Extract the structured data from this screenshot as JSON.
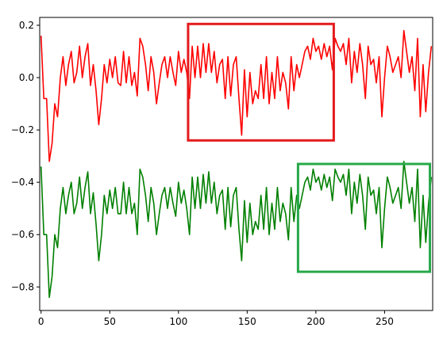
{
  "chart_data": {
    "type": "line",
    "title": "",
    "xlabel": "",
    "ylabel": "",
    "xlim": [
      -1,
      285
    ],
    "ylim": [
      -0.89,
      0.23
    ],
    "xticks": [
      0,
      50,
      100,
      150,
      200,
      250
    ],
    "xtick_labels": [
      "0",
      "50",
      "100",
      "150",
      "200",
      "250"
    ],
    "yticks": [
      0.2,
      0.0,
      -0.2,
      -0.4,
      -0.6,
      -0.8
    ],
    "ytick_labels": [
      "0.2",
      "0.0",
      "−0.2",
      "−0.4",
      "−0.6",
      "−0.8"
    ],
    "grid": false,
    "legend": null,
    "series": [
      {
        "color": "#ff0000",
        "x": [
          0,
          2,
          4,
          6,
          8,
          10,
          12,
          14,
          16,
          18,
          20,
          22,
          24,
          26,
          28,
          30,
          32,
          34,
          36,
          38,
          40,
          42,
          44,
          46,
          48,
          50,
          52,
          54,
          56,
          58,
          60,
          62,
          64,
          66,
          68,
          70,
          72,
          74,
          76,
          78,
          80,
          82,
          84,
          86,
          88,
          90,
          92,
          94,
          96,
          98,
          100,
          102,
          104,
          106,
          108,
          110,
          112,
          114,
          116,
          118,
          120,
          122,
          124,
          126,
          128,
          130,
          132,
          134,
          136,
          138,
          140,
          142,
          144,
          146,
          148,
          150,
          152,
          154,
          156,
          158,
          160,
          162,
          164,
          166,
          168,
          170,
          172,
          174,
          176,
          178,
          180,
          182,
          184,
          186,
          188,
          190,
          192,
          194,
          196,
          198,
          200,
          202,
          204,
          206,
          208,
          210,
          212,
          214,
          216,
          218,
          220,
          222,
          224,
          226,
          228,
          230,
          232,
          234,
          236,
          238,
          240,
          242,
          244,
          246,
          248,
          250,
          252,
          254,
          256,
          258,
          260,
          262,
          264,
          266,
          268,
          270,
          272,
          274,
          276,
          278,
          280,
          282,
          284
        ],
        "values": [
          0.16,
          -0.08,
          -0.08,
          -0.32,
          -0.25,
          -0.1,
          -0.15,
          0.0,
          0.08,
          -0.03,
          0.05,
          0.1,
          -0.02,
          0.02,
          0.12,
          0.0,
          0.08,
          0.13,
          -0.03,
          0.05,
          -0.05,
          -0.18,
          -0.08,
          0.05,
          -0.02,
          0.07,
          0.0,
          0.08,
          -0.02,
          -0.03,
          0.1,
          -0.02,
          0.08,
          -0.03,
          0.02,
          -0.07,
          0.15,
          0.12,
          0.05,
          -0.05,
          0.08,
          0.02,
          -0.1,
          -0.02,
          0.05,
          0.08,
          0.0,
          0.08,
          0.02,
          -0.03,
          0.1,
          0.02,
          0.07,
          0.02,
          -0.08,
          0.12,
          0.0,
          0.12,
          0.0,
          0.13,
          0.02,
          0.13,
          0.02,
          0.1,
          -0.02,
          0.05,
          0.07,
          -0.08,
          0.08,
          -0.07,
          0.05,
          0.08,
          -0.08,
          -0.22,
          0.03,
          -0.15,
          0.02,
          -0.1,
          -0.05,
          -0.08,
          0.05,
          -0.08,
          0.08,
          -0.1,
          0.02,
          -0.08,
          0.08,
          -0.05,
          0.02,
          -0.02,
          -0.12,
          0.08,
          -0.05,
          0.05,
          0.0,
          0.05,
          0.1,
          0.12,
          0.07,
          0.15,
          0.1,
          0.12,
          0.07,
          0.13,
          0.08,
          0.12,
          0.03,
          0.15,
          0.12,
          0.1,
          0.13,
          0.05,
          0.15,
          -0.02,
          0.1,
          0.02,
          0.13,
          0.05,
          -0.08,
          0.12,
          0.05,
          0.07,
          -0.02,
          0.08,
          -0.15,
          0.0,
          0.12,
          0.08,
          0.02,
          0.05,
          0.08,
          0.0,
          0.18,
          0.1,
          0.02,
          0.08,
          -0.05,
          0.15,
          -0.15,
          0.05,
          -0.13,
          0.02,
          0.12
        ]
      },
      {
        "color": "#008000",
        "x": [
          0,
          2,
          4,
          6,
          8,
          10,
          12,
          14,
          16,
          18,
          20,
          22,
          24,
          26,
          28,
          30,
          32,
          34,
          36,
          38,
          40,
          42,
          44,
          46,
          48,
          50,
          52,
          54,
          56,
          58,
          60,
          62,
          64,
          66,
          68,
          70,
          72,
          74,
          76,
          78,
          80,
          82,
          84,
          86,
          88,
          90,
          92,
          94,
          96,
          98,
          100,
          102,
          104,
          106,
          108,
          110,
          112,
          114,
          116,
          118,
          120,
          122,
          124,
          126,
          128,
          130,
          132,
          134,
          136,
          138,
          140,
          142,
          144,
          146,
          148,
          150,
          152,
          154,
          156,
          158,
          160,
          162,
          164,
          166,
          168,
          170,
          172,
          174,
          176,
          178,
          180,
          182,
          184,
          186,
          188,
          190,
          192,
          194,
          196,
          198,
          200,
          202,
          204,
          206,
          208,
          210,
          212,
          214,
          216,
          218,
          220,
          222,
          224,
          226,
          228,
          230,
          232,
          234,
          236,
          238,
          240,
          242,
          244,
          246,
          248,
          250,
          252,
          254,
          256,
          258,
          260,
          262,
          264,
          266,
          268,
          270,
          272,
          274,
          276,
          278,
          280,
          282,
          284
        ],
        "values": [
          -0.34,
          -0.6,
          -0.6,
          -0.84,
          -0.76,
          -0.6,
          -0.65,
          -0.5,
          -0.42,
          -0.52,
          -0.45,
          -0.4,
          -0.52,
          -0.48,
          -0.38,
          -0.5,
          -0.42,
          -0.36,
          -0.52,
          -0.44,
          -0.56,
          -0.7,
          -0.6,
          -0.45,
          -0.52,
          -0.43,
          -0.5,
          -0.42,
          -0.52,
          -0.52,
          -0.4,
          -0.52,
          -0.42,
          -0.52,
          -0.48,
          -0.6,
          -0.35,
          -0.38,
          -0.45,
          -0.55,
          -0.42,
          -0.48,
          -0.6,
          -0.52,
          -0.45,
          -0.42,
          -0.5,
          -0.42,
          -0.48,
          -0.53,
          -0.4,
          -0.48,
          -0.43,
          -0.5,
          -0.6,
          -0.38,
          -0.5,
          -0.38,
          -0.5,
          -0.37,
          -0.48,
          -0.36,
          -0.48,
          -0.4,
          -0.52,
          -0.45,
          -0.43,
          -0.58,
          -0.42,
          -0.57,
          -0.45,
          -0.42,
          -0.58,
          -0.7,
          -0.47,
          -0.63,
          -0.48,
          -0.6,
          -0.55,
          -0.58,
          -0.45,
          -0.58,
          -0.42,
          -0.6,
          -0.48,
          -0.58,
          -0.42,
          -0.55,
          -0.48,
          -0.52,
          -0.62,
          -0.42,
          -0.55,
          -0.45,
          -0.5,
          -0.45,
          -0.4,
          -0.38,
          -0.43,
          -0.35,
          -0.4,
          -0.38,
          -0.43,
          -0.37,
          -0.42,
          -0.38,
          -0.47,
          -0.35,
          -0.38,
          -0.4,
          -0.37,
          -0.45,
          -0.35,
          -0.52,
          -0.4,
          -0.48,
          -0.37,
          -0.45,
          -0.58,
          -0.38,
          -0.45,
          -0.43,
          -0.52,
          -0.42,
          -0.65,
          -0.5,
          -0.38,
          -0.42,
          -0.48,
          -0.45,
          -0.42,
          -0.5,
          -0.32,
          -0.4,
          -0.48,
          -0.42,
          -0.55,
          -0.35,
          -0.65,
          -0.45,
          -0.63,
          -0.48,
          -0.38
        ]
      }
    ],
    "annotations": [
      {
        "shape": "rectangle",
        "color": "#e41a1c",
        "x_range": [
          107,
          213
        ],
        "y_range": [
          -0.24,
          0.205
        ]
      },
      {
        "shape": "rectangle",
        "color": "#27a84a",
        "x_range": [
          187,
          283
        ],
        "y_range": [
          -0.742,
          -0.33
        ]
      }
    ]
  }
}
